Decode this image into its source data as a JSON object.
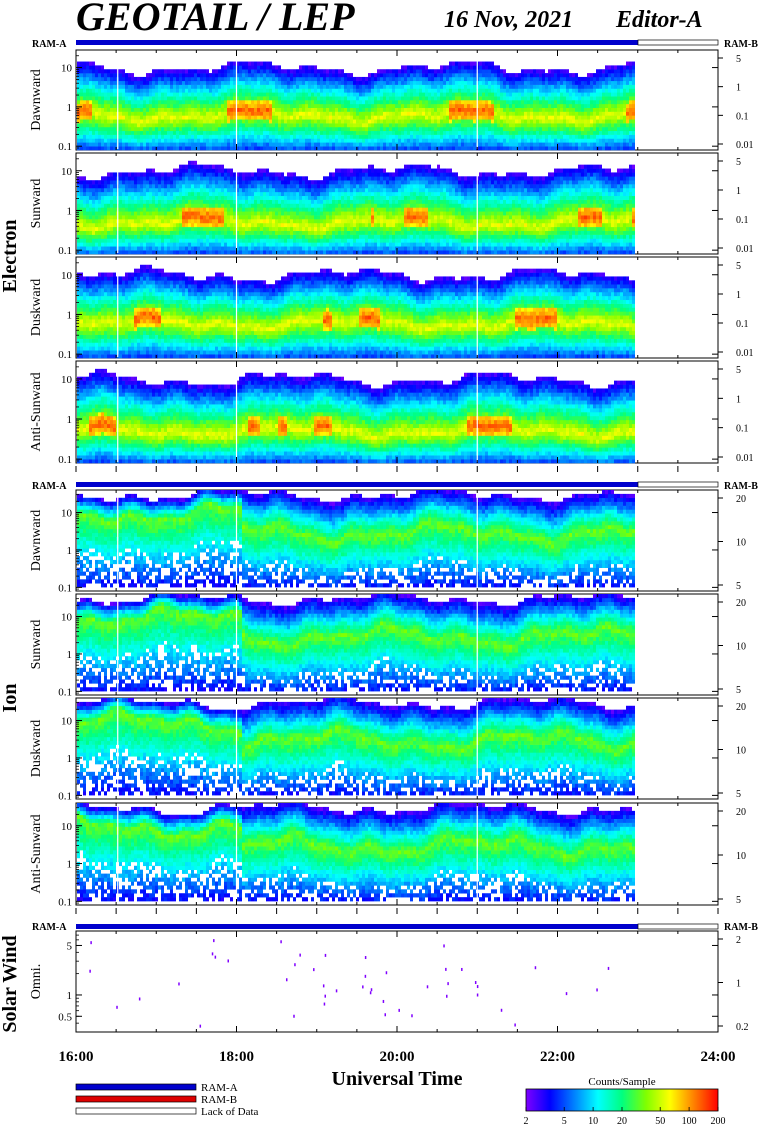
{
  "header": {
    "title": "GEOTAIL / LEP",
    "date": "16 Nov, 2021",
    "editor": "Editor-A"
  },
  "ram_labels": {
    "ram_a": "RAM-A",
    "ram_b": "RAM-B"
  },
  "colors": {
    "ram_a": "#0000cc",
    "ram_b": "#dd0000",
    "lack_of_data": "#ffffff",
    "frame": "#000000"
  },
  "groups": [
    {
      "id": "electron",
      "label": "Electron"
    },
    {
      "id": "ion",
      "label": "Ion"
    },
    {
      "id": "solar",
      "label": "Solar Wind"
    }
  ],
  "x_axis": {
    "label": "Universal Time",
    "range_hours": [
      16,
      24
    ],
    "tick_labels": [
      "16:00",
      "18:00",
      "20:00",
      "22:00",
      "24:00"
    ],
    "data_end_hour": 22.95
  },
  "legend": {
    "ram_a": "RAM-A",
    "ram_b": "RAM-B",
    "lack": "Lack of Data"
  },
  "colorbar": {
    "title": "Counts/Sample",
    "ticks": [
      "2",
      "5",
      "10",
      "20",
      "50",
      "100",
      "200"
    ],
    "scale": "log",
    "range": [
      2,
      200
    ],
    "colors": [
      "#7f00ff",
      "#0000ff",
      "#0080ff",
      "#00ffff",
      "#00ff80",
      "#80ff00",
      "#ffff00",
      "#ff8000",
      "#ff0000"
    ]
  },
  "chart_data": [
    {
      "type": "heatmap",
      "group": "Electron",
      "panel": "Dawnward",
      "ylabel": "Dawnward",
      "y_left_scale": "log",
      "y_left_ticks": [
        "10",
        "1",
        "0.1"
      ],
      "y_right_ticks": [
        "5",
        "1",
        "0.1",
        "0.01"
      ],
      "profile": {
        "low": 0.1,
        "peak": 0.6,
        "high": 10
      }
    },
    {
      "type": "heatmap",
      "group": "Electron",
      "panel": "Sunward",
      "ylabel": "Sunward",
      "y_left_scale": "log",
      "y_left_ticks": [
        "10",
        "1",
        "0.1"
      ],
      "y_right_ticks": [
        "5",
        "1",
        "0.1",
        "0.01"
      ],
      "profile": {
        "low": 0.1,
        "peak": 0.5,
        "high": 10
      }
    },
    {
      "type": "heatmap",
      "group": "Electron",
      "panel": "Duskward",
      "ylabel": "Duskward",
      "y_left_scale": "log",
      "y_left_ticks": [
        "10",
        "1",
        "0.1"
      ],
      "y_right_ticks": [
        "5",
        "1",
        "0.1",
        "0.01"
      ],
      "profile": {
        "low": 0.1,
        "peak": 0.6,
        "high": 10
      }
    },
    {
      "type": "heatmap",
      "group": "Electron",
      "panel": "Anti-Sunward",
      "ylabel": "Anti-Sunward",
      "y_left_scale": "log",
      "y_left_ticks": [
        "10",
        "1",
        "0.1"
      ],
      "y_right_ticks": [
        "5",
        "1",
        "0.1",
        "0.01"
      ],
      "profile": {
        "low": 0.1,
        "peak": 0.5,
        "high": 10
      }
    },
    {
      "type": "heatmap",
      "group": "Ion",
      "panel": "Dawnward",
      "ylabel": "Dawnward",
      "y_left_scale": "log",
      "y_left_ticks": [
        "10",
        "1",
        "0.1"
      ],
      "y_right_ticks": [
        "20",
        "10",
        "5"
      ],
      "profile": {
        "low": 0.1,
        "peak": 3,
        "high": 30
      }
    },
    {
      "type": "heatmap",
      "group": "Ion",
      "panel": "Sunward",
      "ylabel": "Sunward",
      "y_left_scale": "log",
      "y_left_ticks": [
        "10",
        "1",
        "0.1"
      ],
      "y_right_ticks": [
        "20",
        "10",
        "5"
      ],
      "profile": {
        "low": 0.1,
        "peak": 3,
        "high": 30
      }
    },
    {
      "type": "heatmap",
      "group": "Ion",
      "panel": "Duskward",
      "ylabel": "Duskward",
      "y_left_scale": "log",
      "y_left_ticks": [
        "10",
        "1",
        "0.1"
      ],
      "y_right_ticks": [
        "20",
        "10",
        "5"
      ],
      "profile": {
        "low": 0.1,
        "peak": 3,
        "high": 30
      }
    },
    {
      "type": "heatmap",
      "group": "Ion",
      "panel": "Anti-Sunward",
      "ylabel": "Anti-Sunward",
      "y_left_scale": "log",
      "y_left_ticks": [
        "10",
        "1",
        "0.1"
      ],
      "y_right_ticks": [
        "20",
        "10",
        "5"
      ],
      "profile": {
        "low": 0.1,
        "peak": 3,
        "high": 30
      }
    },
    {
      "type": "scatter",
      "group": "Solar Wind",
      "panel": "Omni.",
      "ylabel": "Omni.",
      "y_left_scale": "log",
      "y_left_ticks": [
        "5",
        "1",
        "0.5"
      ],
      "y_right_ticks": [
        "2",
        "1",
        "0.2"
      ],
      "note": "sparse isolated pixels"
    }
  ]
}
